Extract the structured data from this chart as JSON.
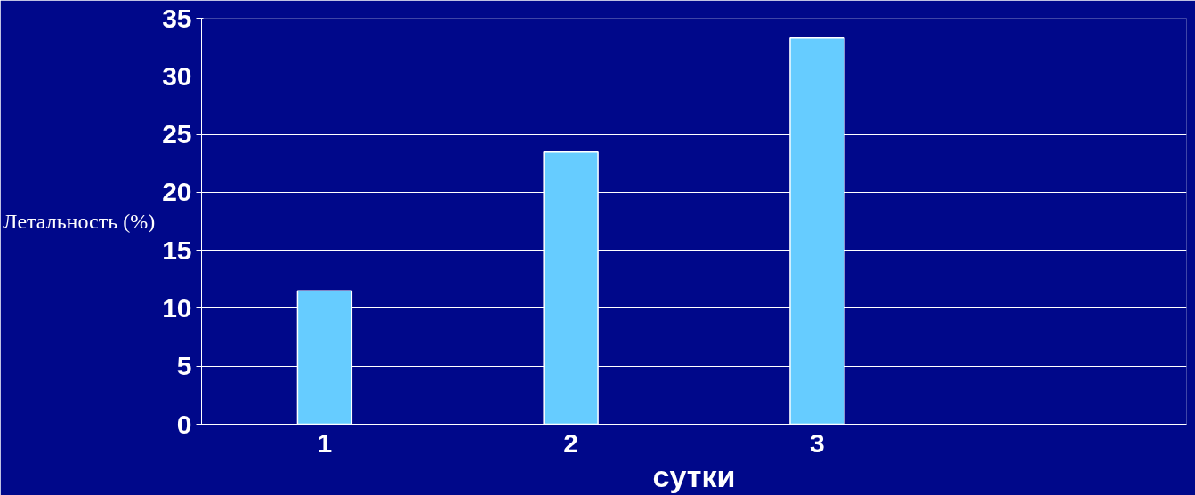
{
  "chart_data": {
    "type": "bar",
    "xlabel": "сутки",
    "ylabel": "Летальность (%)",
    "categories": [
      "1",
      "2",
      "3",
      null
    ],
    "values": [
      11.5,
      23.5,
      33.3,
      null
    ],
    "color": "#66ccff",
    "ylim": [
      0,
      35
    ],
    "yticks": [
      0,
      5,
      10,
      15,
      20,
      25,
      30,
      35
    ],
    "grid": "y"
  }
}
